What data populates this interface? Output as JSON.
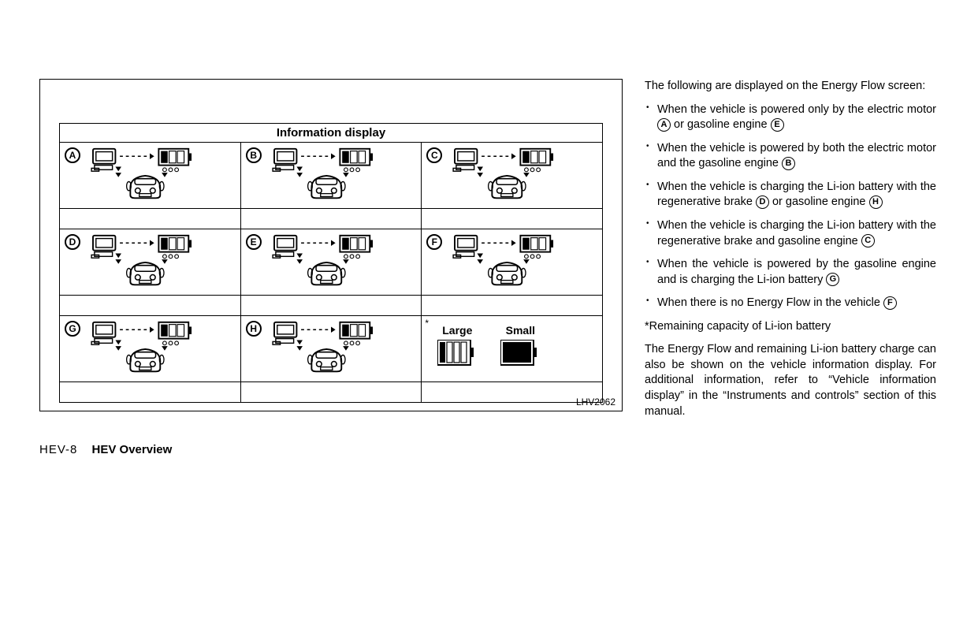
{
  "figure": {
    "header": "Information display",
    "code": "LHV2062",
    "cells": [
      "A",
      "B",
      "C",
      "D",
      "E",
      "F",
      "G",
      "H"
    ],
    "legend": {
      "large": "Large",
      "small": "Small"
    }
  },
  "text": {
    "intro": "The following are displayed on the Energy Flow screen:",
    "bullets": [
      {
        "pre": "When the vehicle is powered only by the electric motor ",
        "c1": "A",
        "mid": " or gasoline engine ",
        "c2": "E"
      },
      {
        "pre": "When the vehicle is powered by both the electric motor and the gasoline engine ",
        "c1": "B"
      },
      {
        "pre": "When the vehicle is charging the Li-ion battery with the regenerative brake ",
        "c1": "D",
        "mid": " or gasoline engine ",
        "c2": "H"
      },
      {
        "pre": "When the vehicle is charging the Li-ion battery with the regenerative brake and gasoline engine ",
        "c1": "C"
      },
      {
        "pre": "When the vehicle is powered by the gasoline engine and is charging the Li-ion battery ",
        "c1": "G"
      },
      {
        "pre": "When there is no Energy Flow in the vehicle ",
        "c1": "F"
      }
    ],
    "note": "*Remaining capacity of Li-ion battery",
    "para": "The Energy Flow and remaining Li-ion battery charge can also be shown on the vehicle information display. For additional information, refer to “Vehicle information display” in the “Instruments and controls” section of this manual."
  },
  "footer": {
    "page": "HEV-8",
    "section": "HEV Overview"
  }
}
